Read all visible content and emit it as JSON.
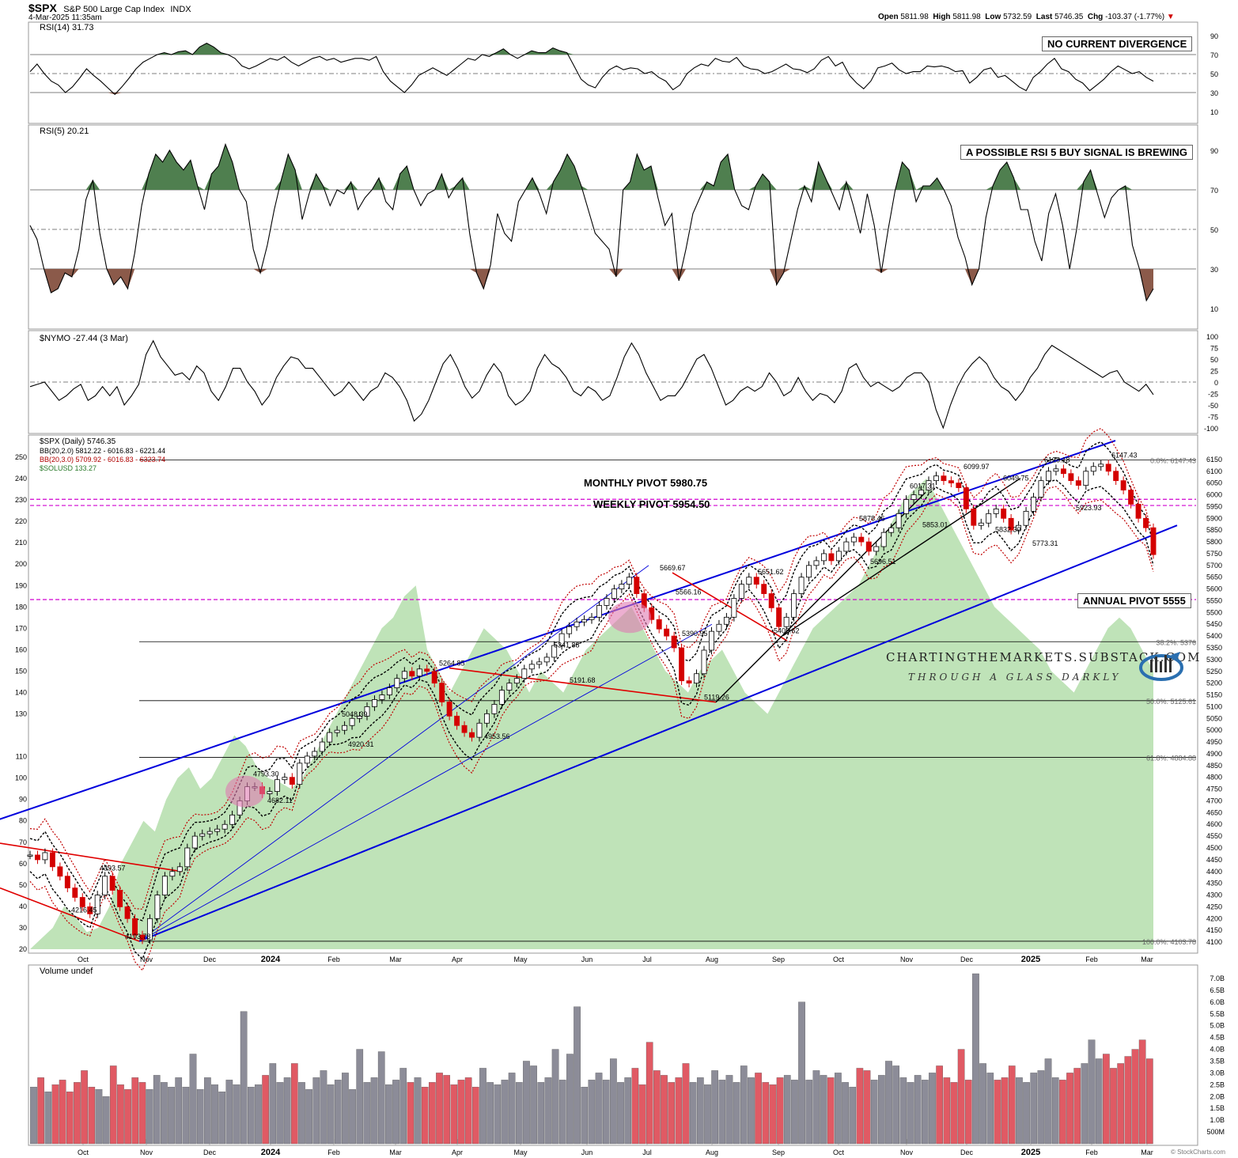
{
  "header": {
    "symbol": "$SPX",
    "name": "S&P 500 Large Cap Index",
    "exchange": "INDX",
    "date": "4-Mar-2025 11:35am",
    "open_label": "Open",
    "open": "5811.98",
    "high_label": "High",
    "high": "5811.98",
    "low_label": "Low",
    "low": "5732.59",
    "last_label": "Last",
    "last": "5746.35",
    "chg_label": "Chg",
    "chg": "-103.37 (-1.77%)",
    "watermark": "© StockCharts.com"
  },
  "annotations": {
    "rsi14_box": "NO CURRENT DIVERGENCE",
    "rsi5_box": "A POSSIBLE RSI 5 BUY SIGNAL IS BREWING",
    "monthly_pivot": "MONTHLY PIVOT 5980.75",
    "weekly_pivot": "WEEKLY PIVOT 5954.50",
    "annual_pivot": "ANNUAL PIVOT 5555",
    "site": "CHARTINGTHEMARKETS.SUBSTACK.COM",
    "tagline": "THROUGH A GLASS DARKLY"
  },
  "colors": {
    "price_up": "#ffffff",
    "price_down": "#d40000",
    "candle_outline": "#000000",
    "bb2": "#000000",
    "bb3": "#c00000",
    "sol_fill": "#a9d9a0",
    "trend_blue": "#0000dd",
    "trend_red": "#e00000",
    "pivot_magenta": "#d000d0",
    "rsi_green": "#4f7f4f",
    "rsi_brown": "#8b5a4a",
    "vol_up": "#8c8c98",
    "vol_down": "#e05a64"
  },
  "chart_data": [
    {
      "type": "line",
      "title": "RSI(14) 31.73",
      "series_name": "RSI(14)",
      "last": 31.73,
      "ylim": [
        10,
        90
      ],
      "yticks": [
        90,
        70,
        50,
        30,
        10
      ],
      "values": [
        52,
        60,
        50,
        42,
        38,
        30,
        36,
        45,
        55,
        48,
        42,
        35,
        28,
        36,
        45,
        55,
        62,
        66,
        70,
        72,
        70,
        73,
        74,
        70,
        78,
        82,
        78,
        72,
        70,
        66,
        58,
        55,
        58,
        62,
        66,
        64,
        68,
        62,
        58,
        62,
        66,
        68,
        64,
        66,
        62,
        64,
        66,
        66,
        64,
        68,
        52,
        42,
        36,
        30,
        38,
        48,
        52,
        56,
        52,
        48,
        54,
        60,
        66,
        64,
        70,
        68,
        72,
        76,
        70,
        66,
        70,
        74,
        72,
        72,
        77,
        74,
        72,
        58,
        44,
        38,
        35,
        46,
        54,
        58,
        54,
        56,
        55,
        50,
        52,
        46,
        42,
        33,
        38,
        50,
        56,
        60,
        58,
        66,
        63,
        62,
        67,
        58,
        55,
        54,
        50,
        52,
        56,
        60,
        55,
        54,
        51,
        55,
        64,
        68,
        58,
        62,
        48,
        40,
        34,
        42,
        56,
        58,
        61,
        54,
        50,
        52,
        52,
        58,
        57,
        58,
        56,
        52,
        53,
        40,
        46,
        54,
        56,
        46,
        48,
        42,
        36,
        32,
        46,
        52,
        60,
        66,
        55,
        52,
        44,
        40,
        32,
        38,
        44,
        52,
        58,
        54,
        50,
        52,
        46,
        42
      ]
    },
    {
      "type": "area",
      "title": "RSI(5) 20.21",
      "series_name": "RSI(5)",
      "last": 20.21,
      "ylim": [
        10,
        90
      ],
      "yticks": [
        90,
        70,
        50,
        30,
        10
      ],
      "values": [
        52,
        45,
        30,
        18,
        20,
        28,
        26,
        40,
        65,
        75,
        48,
        30,
        22,
        26,
        20,
        38,
        62,
        78,
        88,
        84,
        90,
        84,
        80,
        85,
        72,
        60,
        78,
        82,
        93,
        84,
        70,
        64,
        40,
        28,
        42,
        60,
        75,
        88,
        80,
        55,
        68,
        78,
        72,
        62,
        70,
        68,
        74,
        60,
        66,
        70,
        76,
        64,
        60,
        78,
        82,
        70,
        62,
        68,
        70,
        78,
        66,
        72,
        76,
        48,
        28,
        20,
        32,
        58,
        48,
        44,
        64,
        70,
        76,
        68,
        58,
        74,
        80,
        88,
        82,
        72,
        60,
        48,
        44,
        40,
        26,
        70,
        74,
        88,
        80,
        82,
        66,
        52,
        58,
        24,
        40,
        58,
        66,
        74,
        72,
        84,
        88,
        70,
        62,
        60,
        72,
        78,
        74,
        22,
        28,
        44,
        60,
        72,
        64,
        84,
        76,
        68,
        60,
        74,
        62,
        48,
        68,
        52,
        28,
        50,
        70,
        84,
        80,
        64,
        72,
        72,
        76,
        70,
        62,
        46,
        36,
        22,
        30,
        56,
        72,
        80,
        84,
        76,
        60,
        60,
        44,
        34,
        58,
        68,
        52,
        30,
        50,
        74,
        80,
        68,
        56,
        66,
        70,
        72,
        42,
        30,
        14,
        20
      ]
    },
    {
      "type": "line",
      "title": "$NYMO -27.44 (3 Mar)",
      "series_name": "$NYMO",
      "last": -27.44,
      "ylim": [
        -100,
        100
      ],
      "yticks": [
        100,
        75,
        50,
        25,
        0,
        -25,
        -50,
        -75,
        -100
      ],
      "values": [
        -10,
        -5,
        0,
        -20,
        -40,
        -30,
        -15,
        -5,
        -40,
        -30,
        -10,
        -30,
        -10,
        -50,
        -30,
        -5,
        60,
        90,
        55,
        35,
        15,
        20,
        5,
        35,
        20,
        -20,
        -40,
        -10,
        30,
        30,
        0,
        -20,
        -50,
        -30,
        10,
        35,
        55,
        50,
        30,
        30,
        10,
        -10,
        -30,
        -20,
        0,
        -20,
        -40,
        -20,
        -10,
        20,
        10,
        -10,
        -40,
        -85,
        -70,
        -40,
        0,
        40,
        60,
        30,
        -10,
        -35,
        -20,
        15,
        40,
        20,
        -30,
        -50,
        -40,
        -20,
        30,
        60,
        40,
        30,
        10,
        -20,
        -30,
        -10,
        -20,
        -40,
        -30,
        10,
        55,
        85,
        60,
        20,
        -10,
        -40,
        -30,
        -30,
        -10,
        20,
        50,
        60,
        30,
        -10,
        -50,
        -40,
        -20,
        -10,
        -20,
        -10,
        20,
        0,
        -30,
        -20,
        10,
        -20,
        -40,
        -25,
        -30,
        -45,
        -20,
        30,
        40,
        10,
        -10,
        0,
        -10,
        -20,
        -10,
        10,
        20,
        20,
        0,
        -60,
        -100,
        -50,
        -10,
        20,
        40,
        55,
        40,
        10,
        -10,
        -20,
        -40,
        -20,
        10,
        30,
        60,
        80,
        70,
        60,
        50,
        40,
        30,
        20,
        10,
        20,
        25,
        0,
        -10,
        -20,
        -5,
        -27.44
      ]
    },
    {
      "type": "line",
      "title": "$SPX (Daily) 5746.35",
      "series_name": "$SPX",
      "last": 5746.35,
      "legend": [
        "$SPX (Daily) 5746.35",
        "BB(20,2.0) 5812.22 - 6016.83 - 6221.44",
        "BB(20,3.0) 5709.92 - 6016.83 - 6323.74",
        "$SOLUSD 133.27"
      ],
      "x_labels": [
        "Oct",
        "Nov",
        "Dec",
        "2024",
        "Feb",
        "Mar",
        "Apr",
        "May",
        "Jun",
        "Jul",
        "Aug",
        "Sep",
        "Oct",
        "Nov",
        "Dec",
        "2025",
        "Feb",
        "Mar"
      ],
      "ylim": [
        4070,
        6200
      ],
      "yticks_right": [
        6150,
        6100,
        6050,
        6000,
        5950,
        5900,
        5850,
        5800,
        5750,
        5700,
        5650,
        5600,
        5550,
        5500,
        5450,
        5400,
        5350,
        5300,
        5250,
        5200,
        5150,
        5100,
        5050,
        5000,
        4950,
        4900,
        4850,
        4800,
        4750,
        4700,
        4650,
        4600,
        4550,
        4500,
        4450,
        4400,
        4350,
        4300,
        4250,
        4200,
        4150,
        4100
      ],
      "yticks_left_sol": [
        250,
        240,
        230,
        220,
        210,
        200,
        190,
        180,
        170,
        160,
        150,
        140,
        130,
        110,
        100,
        90,
        80,
        70,
        60,
        50,
        40,
        30,
        20
      ],
      "fib_labels": [
        "0.0%: 6147.43",
        "38.2%: 5376",
        "50.0%: 5125.61",
        "61.8%: 4884.88",
        "100.0%: 4103.78"
      ],
      "price_labels": [
        "4393.57",
        "4216.45",
        "4103.78",
        "4793.30",
        "4682.11",
        "5048.39",
        "4920.31",
        "5264.85",
        "4953.56",
        "5341.88",
        "5191.68",
        "5669.67",
        "5566.16",
        "5390.95",
        "5119.26",
        "5651.62",
        "5402.62",
        "5878.46",
        "5696.51",
        "5853.01",
        "6017.31",
        "6099.97",
        "6049.75",
        "5832.30",
        "5773.31",
        "5923.93",
        "6128.18",
        "6147.43"
      ],
      "close_values": [
        4470,
        4450,
        4480,
        4420,
        4380,
        4330,
        4290,
        4250,
        4220,
        4300,
        4380,
        4320,
        4250,
        4200,
        4130,
        4110,
        4200,
        4300,
        4380,
        4400,
        4420,
        4500,
        4550,
        4560,
        4570,
        4580,
        4600,
        4640,
        4700,
        4760,
        4760,
        4730,
        4740,
        4790,
        4800,
        4770,
        4860,
        4890,
        4910,
        4950,
        4990,
        5000,
        5020,
        5050,
        5060,
        5100,
        5130,
        5150,
        5180,
        5220,
        5250,
        5230,
        5260,
        5250,
        5200,
        5120,
        5060,
        5020,
        4990,
        4970,
        5030,
        5070,
        5110,
        5170,
        5200,
        5220,
        5260,
        5280,
        5290,
        5310,
        5360,
        5410,
        5440,
        5460,
        5470,
        5480,
        5530,
        5560,
        5600,
        5620,
        5650,
        5580,
        5520,
        5470,
        5430,
        5400,
        5350,
        5210,
        5200,
        5240,
        5340,
        5420,
        5450,
        5480,
        5560,
        5620,
        5650,
        5620,
        5580,
        5520,
        5440,
        5480,
        5580,
        5650,
        5700,
        5720,
        5750,
        5720,
        5760,
        5800,
        5820,
        5800,
        5760,
        5780,
        5840,
        5860,
        5920,
        5980,
        6000,
        6020,
        6060,
        6080,
        6060,
        6050,
        6030,
        5940,
        5870,
        5880,
        5920,
        5940,
        5900,
        5850,
        5870,
        5930,
        5990,
        6060,
        6100,
        6110,
        6090,
        6060,
        6040,
        6100,
        6120,
        6130,
        6100,
        6060,
        6020,
        5960,
        5900,
        5860,
        5746
      ]
    },
    {
      "type": "bar",
      "title": "Volume undef",
      "yticks": [
        "7.0B",
        "6.5B",
        "6.0B",
        "5.5B",
        "5.0B",
        "4.5B",
        "4.0B",
        "3.5B",
        "3.0B",
        "2.5B",
        "2.0B",
        "1.5B",
        "1.0B",
        "500M"
      ],
      "ylim": [
        0,
        7.3
      ],
      "values_b": [
        2.4,
        2.8,
        2.2,
        2.5,
        2.7,
        2.2,
        2.6,
        3.1,
        2.4,
        2.3,
        2.0,
        3.3,
        2.5,
        2.3,
        2.8,
        2.6,
        2.3,
        2.9,
        2.6,
        2.4,
        2.8,
        2.4,
        3.8,
        2.3,
        2.8,
        2.5,
        2.2,
        2.7,
        2.5,
        5.6,
        2.4,
        2.5,
        2.9,
        3.4,
        2.6,
        2.8,
        3.4,
        2.6,
        2.3,
        2.8,
        3.1,
        2.5,
        2.7,
        3.0,
        2.3,
        4.0,
        2.6,
        2.8,
        3.9,
        2.5,
        2.7,
        3.2,
        2.6,
        2.8,
        2.4,
        2.6,
        3.0,
        2.9,
        2.5,
        2.7,
        2.8,
        2.4,
        3.2,
        2.6,
        2.5,
        2.7,
        3.0,
        2.6,
        3.5,
        3.3,
        2.6,
        2.8,
        4.0,
        2.7,
        3.8,
        5.8,
        2.4,
        2.7,
        3.0,
        2.7,
        3.6,
        2.6,
        2.8,
        3.2,
        2.5,
        4.3,
        3.1,
        2.9,
        2.6,
        2.8,
        3.4,
        2.6,
        2.8,
        2.5,
        3.1,
        2.7,
        2.9,
        2.6,
        3.3,
        2.8,
        3.0,
        2.6,
        2.5,
        2.8,
        2.9,
        2.7,
        6.0,
        2.7,
        3.1,
        2.9,
        2.8,
        3.0,
        2.6,
        2.4,
        3.2,
        3.1,
        2.7,
        2.9,
        3.5,
        3.3,
        2.8,
        2.6,
        2.9,
        2.7,
        3.0,
        3.3,
        2.8,
        2.6,
        4.0,
        2.7,
        7.2,
        3.4,
        3.0,
        2.7,
        2.8,
        3.3,
        2.8,
        2.6,
        3.0,
        3.1,
        3.6,
        2.8,
        2.7,
        3.0,
        3.2,
        3.4,
        4.4,
        3.6,
        3.8,
        3.2,
        3.4,
        3.7,
        4.0,
        4.4,
        3.6
      ]
    }
  ]
}
